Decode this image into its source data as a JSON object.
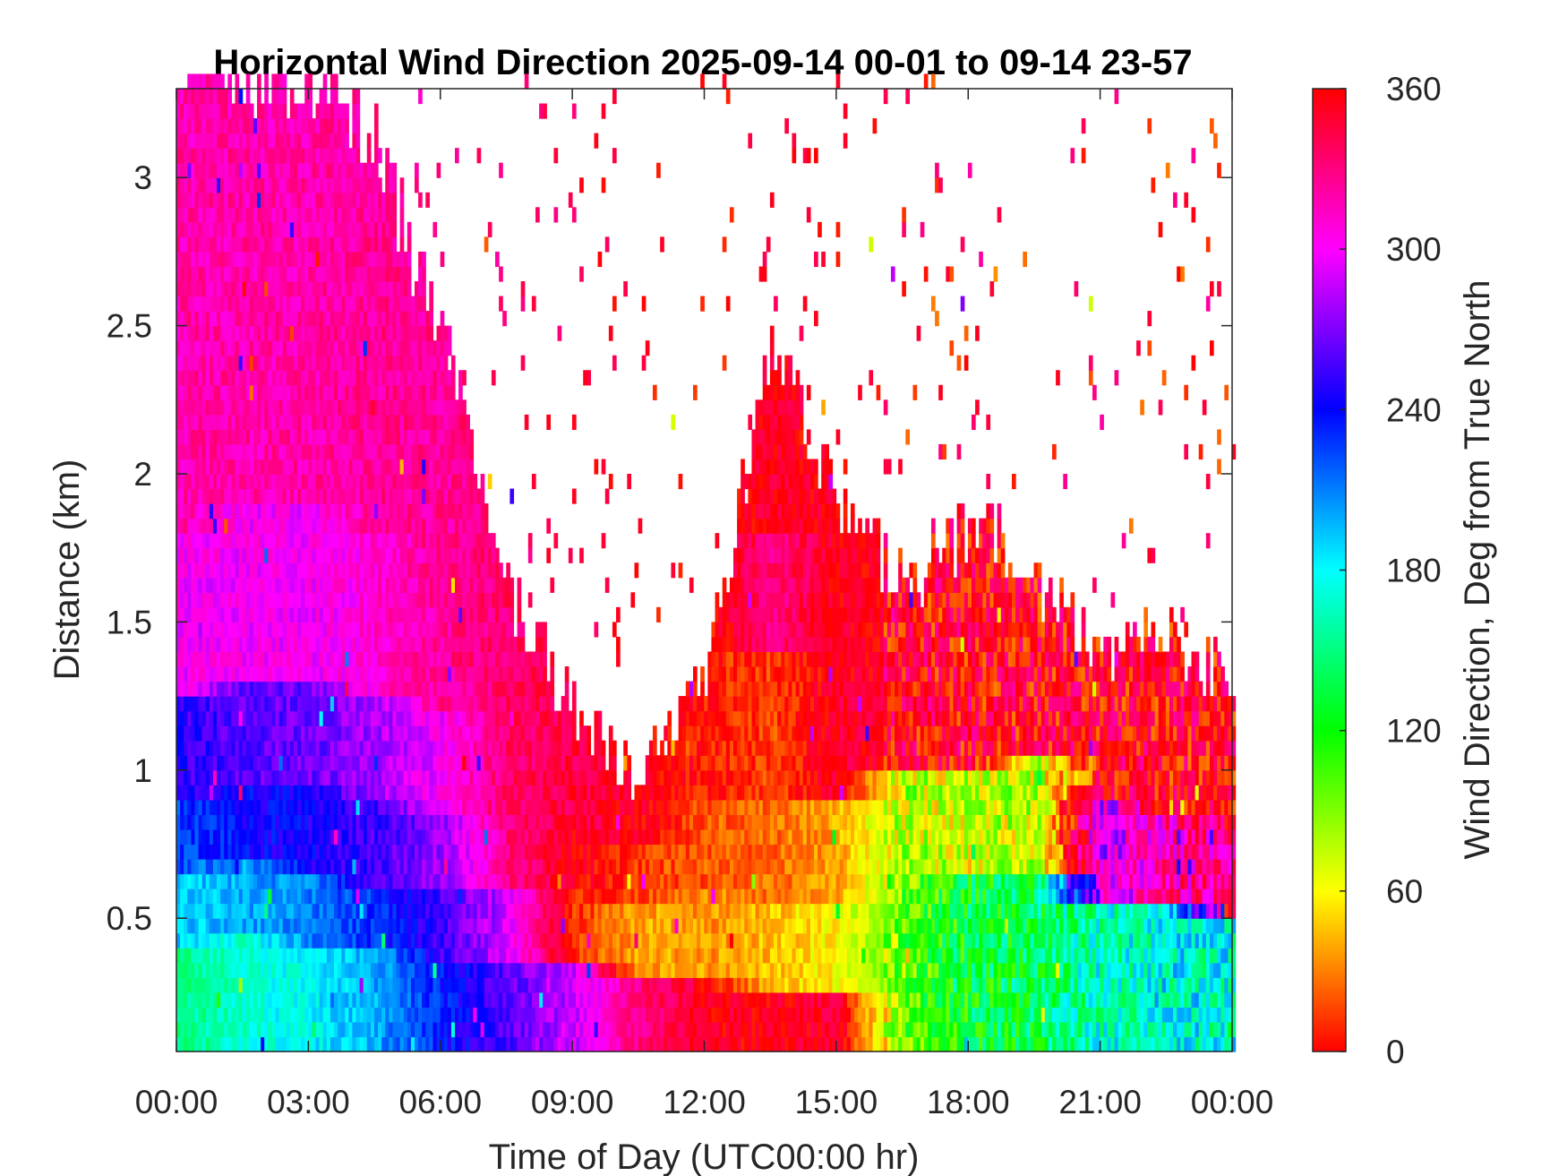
{
  "chart_data": {
    "type": "heatmap",
    "title": "Horizontal Wind Direction 2025-09-14 00-01 to 09-14 23-57",
    "xlabel": "Time of Day (UTC00:00 hr)",
    "ylabel": "Distance (km)",
    "x_ticks": [
      "00:00",
      "03:00",
      "06:00",
      "09:00",
      "12:00",
      "15:00",
      "18:00",
      "21:00",
      "00:00"
    ],
    "x_range_hours": [
      0,
      24
    ],
    "y_ticks": [
      "0.5",
      "1",
      "1.5",
      "2",
      "2.5",
      "3"
    ],
    "y_tick_values": [
      0.5,
      1,
      1.5,
      2,
      2.5,
      3
    ],
    "ylim": [
      0.05,
      3.3
    ],
    "colorbar": {
      "label": "Wind Direction, Deg from True North",
      "ticks": [
        "0",
        "60",
        "120",
        "180",
        "240",
        "300",
        "360"
      ],
      "tick_values": [
        0,
        60,
        120,
        180,
        240,
        300,
        360
      ],
      "range": [
        0,
        360
      ],
      "colormap": "hsv"
    },
    "grid": false,
    "time_step_hours": 0.0833,
    "height_step_km": 0.05,
    "columns": [
      {
        "t": 0,
        "top_km": 3.3,
        "layers": [
          {
            "to_km": 0.35,
            "deg": 150
          },
          {
            "to_km": 0.6,
            "deg": 190
          },
          {
            "to_km": 0.9,
            "deg": 225
          },
          {
            "to_km": 1.25,
            "deg": 250
          },
          {
            "to_km": 1.8,
            "deg": 300
          },
          {
            "to_km": 3.3,
            "deg": 320
          }
        ]
      },
      {
        "t": 1.5,
        "top_km": 3.3,
        "layers": [
          {
            "to_km": 0.4,
            "deg": 170
          },
          {
            "to_km": 0.65,
            "deg": 200
          },
          {
            "to_km": 0.95,
            "deg": 240
          },
          {
            "to_km": 1.3,
            "deg": 260
          },
          {
            "to_km": 1.9,
            "deg": 300
          },
          {
            "to_km": 3.3,
            "deg": 320
          }
        ]
      },
      {
        "t": 3,
        "top_km": 3.3,
        "layers": [
          {
            "to_km": 0.35,
            "deg": 180
          },
          {
            "to_km": 0.6,
            "deg": 210
          },
          {
            "to_km": 0.95,
            "deg": 245
          },
          {
            "to_km": 1.3,
            "deg": 265
          },
          {
            "to_km": 1.9,
            "deg": 300
          },
          {
            "to_km": 3.3,
            "deg": 320
          }
        ]
      },
      {
        "t": 4.5,
        "top_km": 3.1,
        "layers": [
          {
            "to_km": 0.35,
            "deg": 200
          },
          {
            "to_km": 0.55,
            "deg": 230
          },
          {
            "to_km": 0.9,
            "deg": 255
          },
          {
            "to_km": 1.25,
            "deg": 280
          },
          {
            "to_km": 1.8,
            "deg": 310
          },
          {
            "to_km": 3.1,
            "deg": 325
          }
        ]
      },
      {
        "t": 6,
        "top_km": 2.4,
        "layers": [
          {
            "to_km": 0.3,
            "deg": 235
          },
          {
            "to_km": 0.55,
            "deg": 255
          },
          {
            "to_km": 0.85,
            "deg": 275
          },
          {
            "to_km": 1.2,
            "deg": 300
          },
          {
            "to_km": 2.4,
            "deg": 325
          }
        ]
      },
      {
        "t": 7.5,
        "top_km": 1.6,
        "layers": [
          {
            "to_km": 0.3,
            "deg": 260
          },
          {
            "to_km": 0.55,
            "deg": 290
          },
          {
            "to_km": 0.8,
            "deg": 330
          },
          {
            "to_km": 1.6,
            "deg": 335
          }
        ]
      },
      {
        "t": 9,
        "top_km": 1.15,
        "layers": [
          {
            "to_km": 0.3,
            "deg": 290
          },
          {
            "to_km": 0.55,
            "deg": 10
          },
          {
            "to_km": 0.8,
            "deg": 355
          },
          {
            "to_km": 1.15,
            "deg": 345
          }
        ]
      },
      {
        "t": 10.5,
        "top_km": 0.95,
        "layers": [
          {
            "to_km": 0.25,
            "deg": 330
          },
          {
            "to_km": 0.5,
            "deg": 40
          },
          {
            "to_km": 0.75,
            "deg": 15
          },
          {
            "to_km": 0.95,
            "deg": 355
          }
        ]
      },
      {
        "t": 12,
        "top_km": 1.3,
        "layers": [
          {
            "to_km": 0.25,
            "deg": 355
          },
          {
            "to_km": 0.55,
            "deg": 35
          },
          {
            "to_km": 0.9,
            "deg": 20
          },
          {
            "to_km": 1.3,
            "deg": 5
          }
        ]
      },
      {
        "t": 13.5,
        "top_km": 2.4,
        "layers": [
          {
            "to_km": 0.2,
            "deg": 355
          },
          {
            "to_km": 0.5,
            "deg": 45
          },
          {
            "to_km": 0.9,
            "deg": 25
          },
          {
            "to_km": 1.4,
            "deg": 15
          },
          {
            "to_km": 1.8,
            "deg": 330
          },
          {
            "to_km": 2.4,
            "deg": 350
          }
        ]
      },
      {
        "t": 15,
        "top_km": 1.9,
        "layers": [
          {
            "to_km": 0.2,
            "deg": 350
          },
          {
            "to_km": 0.5,
            "deg": 60
          },
          {
            "to_km": 0.9,
            "deg": 40
          },
          {
            "to_km": 1.3,
            "deg": 350
          },
          {
            "to_km": 1.9,
            "deg": 355
          }
        ]
      },
      {
        "t": 16.5,
        "top_km": 1.6,
        "layers": [
          {
            "to_km": 0.6,
            "deg": 100
          },
          {
            "to_km": 1.0,
            "deg": 80
          },
          {
            "to_km": 1.6,
            "deg": 355
          }
        ]
      },
      {
        "t": 18,
        "top_km": 1.8,
        "layers": [
          {
            "to_km": 0.6,
            "deg": 130
          },
          {
            "to_km": 1.0,
            "deg": 70
          },
          {
            "to_km": 1.8,
            "deg": 355
          }
        ]
      },
      {
        "t": 19.5,
        "top_km": 1.6,
        "layers": [
          {
            "to_km": 0.6,
            "deg": 140
          },
          {
            "to_km": 1.05,
            "deg": 80
          },
          {
            "to_km": 1.6,
            "deg": 355
          }
        ]
      },
      {
        "t": 21,
        "top_km": 1.4,
        "layers": [
          {
            "to_km": 0.5,
            "deg": 165
          },
          {
            "to_km": 0.9,
            "deg": 290
          },
          {
            "to_km": 1.4,
            "deg": 355
          }
        ]
      },
      {
        "t": 22.5,
        "top_km": 1.4,
        "layers": [
          {
            "to_km": 0.5,
            "deg": 175
          },
          {
            "to_km": 0.85,
            "deg": 320
          },
          {
            "to_km": 1.4,
            "deg": 355
          }
        ]
      },
      {
        "t": 24,
        "top_km": 1.3,
        "layers": [
          {
            "to_km": 0.45,
            "deg": 170
          },
          {
            "to_km": 0.8,
            "deg": 330
          },
          {
            "to_km": 1.3,
            "deg": 355
          }
        ]
      }
    ]
  }
}
